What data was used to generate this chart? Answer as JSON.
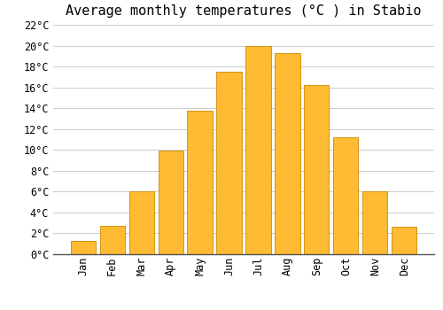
{
  "title": "Average monthly temperatures (°C ) in Stabio",
  "months": [
    "Jan",
    "Feb",
    "Mar",
    "Apr",
    "May",
    "Jun",
    "Jul",
    "Aug",
    "Sep",
    "Oct",
    "Nov",
    "Dec"
  ],
  "values": [
    1.3,
    2.7,
    6.0,
    9.9,
    13.8,
    17.5,
    20.0,
    19.3,
    16.2,
    11.2,
    6.0,
    2.6
  ],
  "bar_color": "#FFBB33",
  "bar_edge_color": "#CC8800",
  "ylim": [
    0,
    22
  ],
  "yticks": [
    0,
    2,
    4,
    6,
    8,
    10,
    12,
    14,
    16,
    18,
    20,
    22
  ],
  "background_color": "#ffffff",
  "grid_color": "#cccccc",
  "title_fontsize": 11,
  "tick_fontsize": 8.5,
  "font_family": "monospace",
  "bar_width": 0.85
}
